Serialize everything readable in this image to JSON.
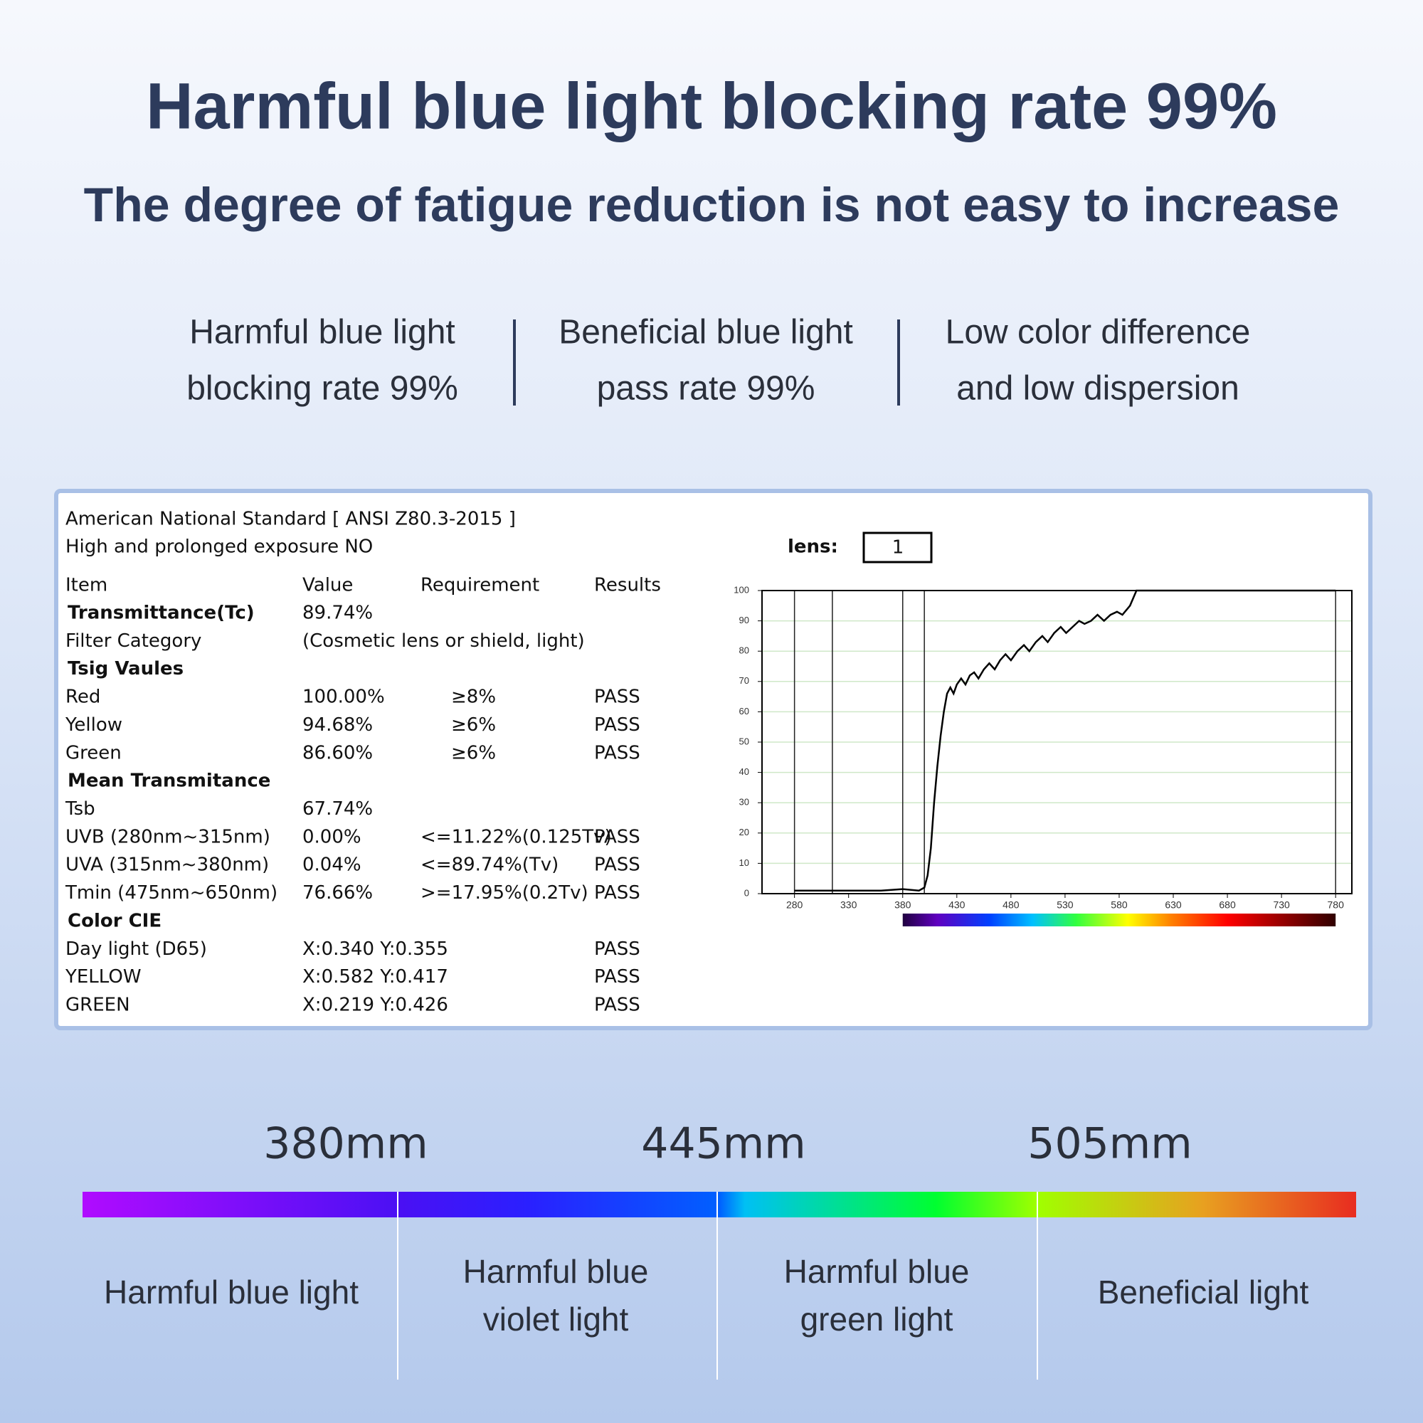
{
  "header": {
    "title": "Harmful blue light blocking rate 99%",
    "subtitle": "The degree of fatigue reduction is not easy to increase"
  },
  "features": [
    [
      "Harmful blue light",
      "blocking rate 99%"
    ],
    [
      "Beneficial blue light",
      "pass rate 99%"
    ],
    [
      "Low color difference",
      "and low dispersion"
    ]
  ],
  "report": {
    "standard": "American National Standard [ ANSI Z80.3-2015 ]",
    "exposure": "High and prolonged exposure NO",
    "lens_label": "lens:",
    "lens_value": "1",
    "headers": [
      "Item",
      "Value",
      "Requirement",
      "Results"
    ],
    "rows": [
      {
        "section": "Transmittance(Tc)",
        "value": "89.74%"
      },
      {
        "item": "Filter Category",
        "value": "(Cosmetic lens or shield, light)"
      },
      {
        "section": "Tsig Vaules"
      },
      {
        "item": "Red",
        "value": "100.00%",
        "requirement": "≥8%",
        "result": "PASS"
      },
      {
        "item": "Yellow",
        "value": "94.68%",
        "requirement": "≥6%",
        "result": "PASS"
      },
      {
        "item": "Green",
        "value": "86.60%",
        "requirement": "≥6%",
        "result": "PASS"
      },
      {
        "section": "Mean Transmitance"
      },
      {
        "item": "Tsb",
        "value": "67.74%"
      },
      {
        "item": "UVB  (280nm~315nm)",
        "value": "0.00%",
        "requirement": "<=11.22%(0.125Tv)",
        "result": "PASS"
      },
      {
        "item": "UVA  (315nm~380nm)",
        "value": "0.04%",
        "requirement": "<=89.74%(Tv)",
        "result": "PASS"
      },
      {
        "item": "Tmin (475nm~650nm)",
        "value": "76.66%",
        "requirement": ">=17.95%(0.2Tv)",
        "result": "PASS"
      },
      {
        "section": "Color CIE"
      },
      {
        "item": "Day light   (D65)",
        "value": "X:0.340 Y:0.355",
        "result": "PASS"
      },
      {
        "item": "YELLOW",
        "value": "X:0.582 Y:0.417",
        "result": "PASS"
      },
      {
        "item": "GREEN",
        "value": "X:0.219 Y:0.426",
        "result": "PASS"
      }
    ]
  },
  "chart_data": {
    "type": "line",
    "color": "#000000",
    "grid": true,
    "x": [
      280,
      300,
      320,
      340,
      360,
      380,
      395,
      400,
      403,
      406,
      409,
      412,
      415,
      418,
      421,
      424,
      427,
      430,
      434,
      438,
      442,
      446,
      450,
      455,
      460,
      465,
      470,
      475,
      480,
      486,
      492,
      497,
      503,
      509,
      514,
      520,
      526,
      531,
      537,
      543,
      548,
      554,
      560,
      566,
      572,
      578,
      583,
      590,
      596,
      620,
      700,
      780
    ],
    "values": [
      1,
      1,
      1,
      1,
      1,
      1.5,
      1,
      2,
      6,
      15,
      30,
      42,
      52,
      60,
      66,
      68,
      66,
      69,
      71,
      69,
      72,
      73,
      71,
      74,
      76,
      74,
      77,
      79,
      77,
      80,
      82,
      80,
      83,
      85,
      83,
      86,
      88,
      86,
      88,
      90,
      89,
      90,
      92,
      90,
      92,
      93,
      92,
      95,
      100,
      100,
      100,
      100
    ],
    "xlim": [
      250,
      795
    ],
    "ylim": [
      0,
      100
    ],
    "xticks": [
      280,
      330,
      380,
      430,
      480,
      530,
      580,
      630,
      680,
      730,
      780
    ],
    "yticks": [
      0,
      10,
      20,
      30,
      40,
      50,
      60,
      70,
      80,
      90,
      100
    ],
    "vlines": [
      280,
      315,
      380,
      400,
      780
    ],
    "colorbar_range": [
      380,
      780
    ]
  },
  "spectrum": {
    "wavelengths": [
      "380mm",
      "445mm",
      "505mm"
    ],
    "regions": [
      [
        "Harmful blue light"
      ],
      [
        "Harmful blue",
        "violet light"
      ],
      [
        "Harmful blue",
        "green light"
      ],
      [
        "Beneficial light"
      ]
    ]
  }
}
